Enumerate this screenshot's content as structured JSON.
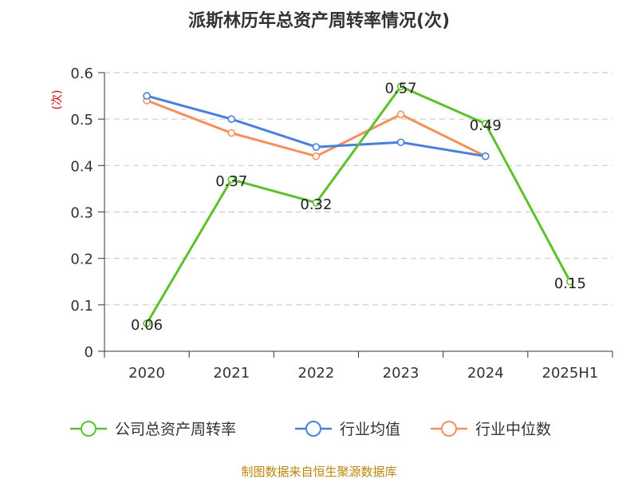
{
  "chart_data": {
    "type": "line",
    "title": "派斯林历年总资产周转率情况(次)",
    "ylabel": "(次)",
    "xlabel": "",
    "categories": [
      "2020",
      "2021",
      "2022",
      "2023",
      "2024",
      "2025H1"
    ],
    "y_ticks": [
      "0",
      "0.1",
      "0.2",
      "0.3",
      "0.4",
      "0.5",
      "0.6"
    ],
    "ylim": [
      0,
      0.6
    ],
    "grid": "horizontal-dashed",
    "legend_position": "bottom",
    "series": [
      {
        "name": "公司总资产周转率",
        "color": "#5cc12d",
        "values": [
          0.06,
          0.37,
          0.32,
          0.57,
          0.49,
          0.15
        ],
        "labels": [
          "0.06",
          "0.37",
          "0.32",
          "0.57",
          "0.49",
          "0.15"
        ]
      },
      {
        "name": "行业均值",
        "color": "#4a7fdb",
        "values": [
          0.55,
          0.5,
          0.44,
          0.45,
          0.42,
          null
        ]
      },
      {
        "name": "行业中位数",
        "color": "#f5905a",
        "values": [
          0.54,
          0.47,
          0.42,
          0.51,
          0.42,
          null
        ]
      }
    ],
    "source": "制图数据来自恒生聚源数据库"
  }
}
